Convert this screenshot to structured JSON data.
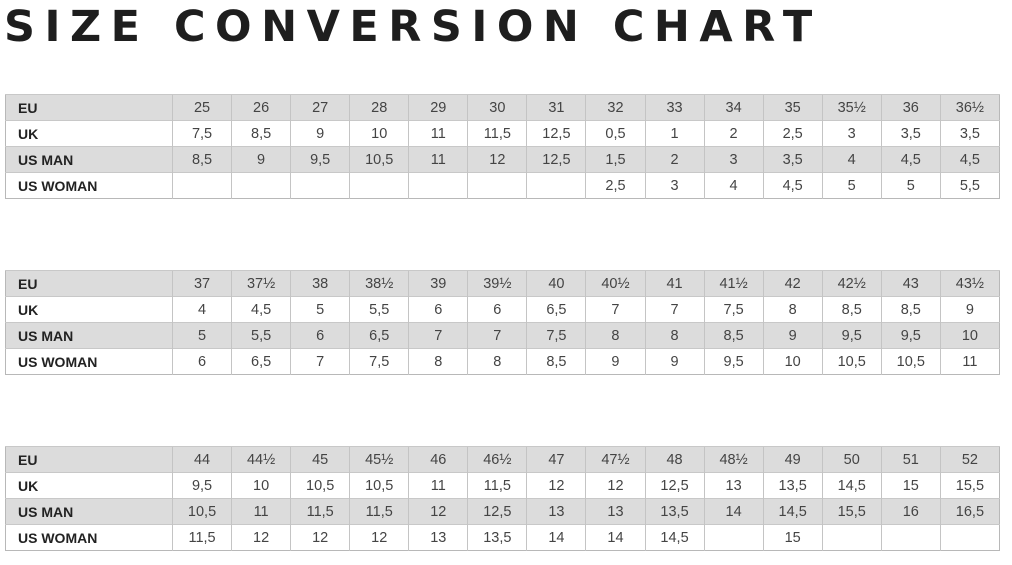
{
  "title": "SIZE CONVERSION CHART",
  "row_labels": [
    "EU",
    "UK",
    "US MAN",
    "US WOMAN"
  ],
  "tables": [
    {
      "rows": [
        [
          "25",
          "26",
          "27",
          "28",
          "29",
          "30",
          "31",
          "32",
          "33",
          "34",
          "35",
          "35½",
          "36",
          "36½"
        ],
        [
          "7,5",
          "8,5",
          "9",
          "10",
          "11",
          "11,5",
          "12,5",
          "0,5",
          "1",
          "2",
          "2,5",
          "3",
          "3,5",
          "3,5"
        ],
        [
          "8,5",
          "9",
          "9,5",
          "10,5",
          "11",
          "12",
          "12,5",
          "1,5",
          "2",
          "3",
          "3,5",
          "4",
          "4,5",
          "4,5"
        ],
        [
          "",
          "",
          "",
          "",
          "",
          "",
          "",
          "2,5",
          "3",
          "4",
          "4,5",
          "5",
          "5",
          "5,5"
        ]
      ]
    },
    {
      "rows": [
        [
          "37",
          "37½",
          "38",
          "38½",
          "39",
          "39½",
          "40",
          "40½",
          "41",
          "41½",
          "42",
          "42½",
          "43",
          "43½"
        ],
        [
          "4",
          "4,5",
          "5",
          "5,5",
          "6",
          "6",
          "6,5",
          "7",
          "7",
          "7,5",
          "8",
          "8,5",
          "8,5",
          "9"
        ],
        [
          "5",
          "5,5",
          "6",
          "6,5",
          "7",
          "7",
          "7,5",
          "8",
          "8",
          "8,5",
          "9",
          "9,5",
          "9,5",
          "10"
        ],
        [
          "6",
          "6,5",
          "7",
          "7,5",
          "8",
          "8",
          "8,5",
          "9",
          "9",
          "9,5",
          "10",
          "10,5",
          "10,5",
          "11"
        ]
      ]
    },
    {
      "rows": [
        [
          "44",
          "44½",
          "45",
          "45½",
          "46",
          "46½",
          "47",
          "47½",
          "48",
          "48½",
          "49",
          "50",
          "51",
          "52"
        ],
        [
          "9,5",
          "10",
          "10,5",
          "10,5",
          "11",
          "11,5",
          "12",
          "12",
          "12,5",
          "13",
          "13,5",
          "14,5",
          "15",
          "15,5"
        ],
        [
          "10,5",
          "11",
          "11,5",
          "11,5",
          "12",
          "12,5",
          "13",
          "13",
          "13,5",
          "14",
          "14,5",
          "15,5",
          "16",
          "16,5"
        ],
        [
          "11,5",
          "12",
          "12",
          "12",
          "13",
          "13,5",
          "14",
          "14",
          "14,5",
          "",
          "15",
          "",
          "",
          ""
        ]
      ]
    }
  ]
}
